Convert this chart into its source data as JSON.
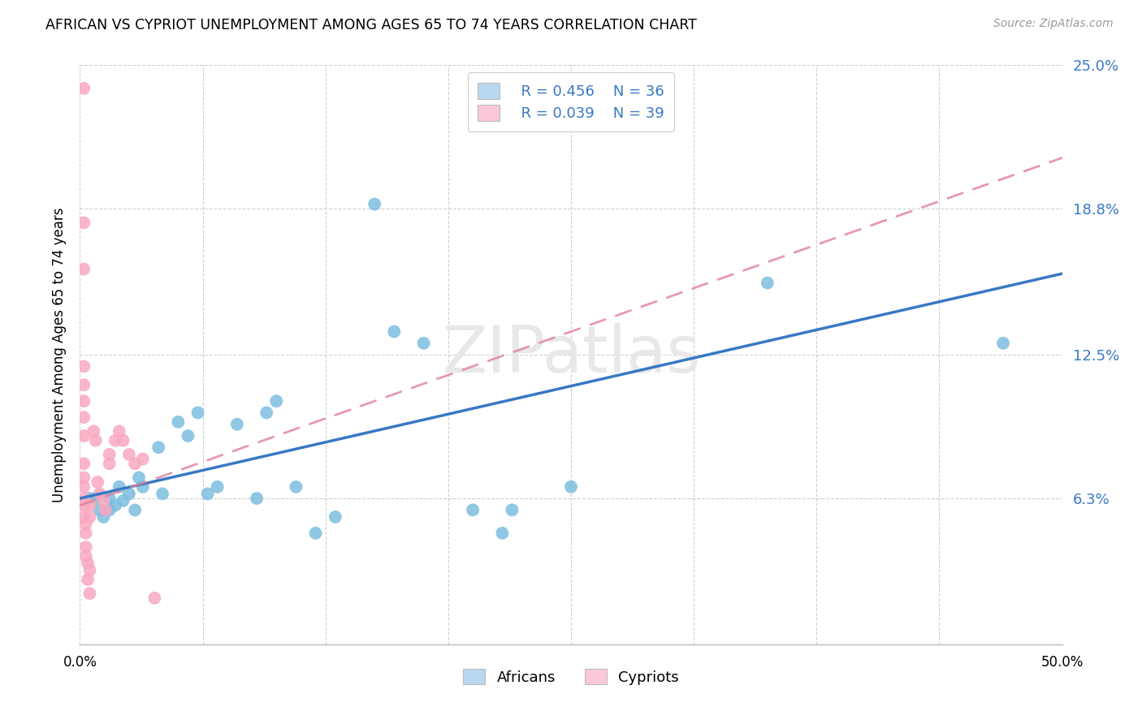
{
  "title": "AFRICAN VS CYPRIOT UNEMPLOYMENT AMONG AGES 65 TO 74 YEARS CORRELATION CHART",
  "source": "Source: ZipAtlas.com",
  "ylabel": "Unemployment Among Ages 65 to 74 years",
  "xlim": [
    0.0,
    0.5
  ],
  "ylim": [
    0.0,
    0.25
  ],
  "ytick_values": [
    0.063,
    0.125,
    0.188,
    0.25
  ],
  "ytick_labels": [
    "6.3%",
    "12.5%",
    "18.8%",
    "25.0%"
  ],
  "xtick_values": [
    0.0,
    0.5
  ],
  "xtick_labels": [
    "0.0%",
    "50.0%"
  ],
  "xtick_minor_values": [
    0.0,
    0.0625,
    0.125,
    0.1875,
    0.25,
    0.3125,
    0.375,
    0.4375,
    0.5
  ],
  "legend_label1": "Africans",
  "legend_label2": "Cypriots",
  "R1": 0.456,
  "N1": 36,
  "R2": 0.039,
  "N2": 39,
  "color_blue": "#7bbde0",
  "color_pink": "#f9a8c0",
  "color_line_blue": "#3878c5",
  "color_line_pink": "#e08098",
  "color_legend_blue_fill": "#b8d8f0",
  "color_legend_pink_fill": "#fcc8d8",
  "watermark": "ZIPatlas",
  "line_blue_x0": 0.0,
  "line_blue_y0": 0.063,
  "line_blue_x1": 0.5,
  "line_blue_y1": 0.16,
  "line_pink_x0": 0.0,
  "line_pink_y0": 0.06,
  "line_pink_x1": 0.5,
  "line_pink_y1": 0.21,
  "africans_x": [
    0.005,
    0.008,
    0.01,
    0.012,
    0.015,
    0.015,
    0.018,
    0.02,
    0.022,
    0.025,
    0.028,
    0.03,
    0.032,
    0.04,
    0.042,
    0.05,
    0.055,
    0.06,
    0.065,
    0.07,
    0.08,
    0.09,
    0.095,
    0.1,
    0.11,
    0.12,
    0.13,
    0.15,
    0.16,
    0.175,
    0.2,
    0.215,
    0.22,
    0.25,
    0.35,
    0.47
  ],
  "africans_y": [
    0.063,
    0.063,
    0.058,
    0.055,
    0.063,
    0.058,
    0.06,
    0.068,
    0.062,
    0.065,
    0.058,
    0.072,
    0.068,
    0.085,
    0.065,
    0.096,
    0.09,
    0.1,
    0.065,
    0.068,
    0.095,
    0.063,
    0.1,
    0.105,
    0.068,
    0.048,
    0.055,
    0.19,
    0.135,
    0.13,
    0.058,
    0.048,
    0.058,
    0.068,
    0.156,
    0.13
  ],
  "cypriots_x": [
    0.002,
    0.002,
    0.002,
    0.002,
    0.002,
    0.002,
    0.002,
    0.002,
    0.002,
    0.002,
    0.002,
    0.002,
    0.002,
    0.002,
    0.003,
    0.003,
    0.003,
    0.003,
    0.004,
    0.004,
    0.005,
    0.005,
    0.005,
    0.005,
    0.007,
    0.008,
    0.009,
    0.01,
    0.012,
    0.013,
    0.015,
    0.015,
    0.018,
    0.02,
    0.022,
    0.025,
    0.028,
    0.032,
    0.038
  ],
  "cypriots_y": [
    0.24,
    0.182,
    0.162,
    0.12,
    0.112,
    0.105,
    0.098,
    0.09,
    0.078,
    0.072,
    0.068,
    0.063,
    0.06,
    0.055,
    0.052,
    0.048,
    0.042,
    0.038,
    0.035,
    0.028,
    0.022,
    0.032,
    0.055,
    0.06,
    0.092,
    0.088,
    0.07,
    0.065,
    0.062,
    0.058,
    0.082,
    0.078,
    0.088,
    0.092,
    0.088,
    0.082,
    0.078,
    0.08,
    0.02
  ]
}
